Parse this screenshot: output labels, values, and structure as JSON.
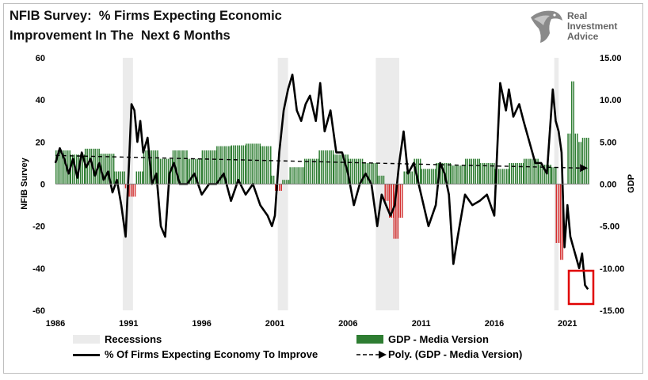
{
  "title_lines": [
    "NFIB Survey:  % Firms Expecting Economic",
    "Improvement In The  Next 6 Months"
  ],
  "logo": {
    "lines": [
      "Real",
      "Investment",
      "Advice"
    ]
  },
  "colors": {
    "gdp_pos": "#2e7d32",
    "gdp_neg": "#d32f2f",
    "recession": "#ebebeb",
    "survey": "#000000",
    "highlight": "#e00000"
  },
  "chart_data": {
    "type": "bar",
    "title": "NFIB Survey:  % Firms Expecting Economic Improvement In The  Next 6 Months",
    "x_ticks": [
      "1986",
      "1991",
      "1996",
      "2001",
      "2006",
      "2011",
      "2016",
      "2021"
    ],
    "x_range": [
      1986,
      2022.5
    ],
    "y_left": {
      "label": "NFIB Survey",
      "range": [
        -60,
        60
      ],
      "ticks": [
        "60",
        "40",
        "20",
        "0",
        "-20",
        "-40",
        "-60"
      ]
    },
    "y_right": {
      "label": "GDP",
      "range": [
        -15,
        15
      ],
      "ticks": [
        "15.00",
        "10.00",
        "5.00",
        "0.00",
        "-5.00",
        "-10.00",
        "-15.00"
      ]
    },
    "grid": false,
    "legend_position": "bottom",
    "recessions": [
      [
        1990.6,
        1991.3
      ],
      [
        2001.2,
        2001.9
      ],
      [
        2007.9,
        2009.5
      ],
      [
        2020.1,
        2020.4
      ]
    ],
    "series": [
      {
        "name": "Recessions",
        "kind": "shaded-band"
      },
      {
        "name": "GDP - Media Version",
        "kind": "bar",
        "axis": "right",
        "x": [
          1986.0,
          1987.0,
          1988.0,
          1989.0,
          1990.0,
          1990.75,
          1991.0,
          1991.5,
          1992.0,
          1993.0,
          1994.0,
          1995.0,
          1996.0,
          1997.0,
          1998.0,
          1999.0,
          2000.0,
          2000.75,
          2001.0,
          2001.5,
          2002.0,
          2003.0,
          2004.0,
          2005.0,
          2006.0,
          2007.0,
          2008.0,
          2008.5,
          2008.8,
          2009.1,
          2009.4,
          2009.8,
          2010.5,
          2011.0,
          2012.0,
          2013.0,
          2014.0,
          2015.0,
          2016.0,
          2017.0,
          2018.0,
          2019.0,
          2019.9,
          2020.2,
          2020.5,
          2020.75,
          2021.0,
          2021.25,
          2021.5,
          2021.75,
          2022.0,
          2022.4
        ],
        "y": [
          4.0,
          3.5,
          4.2,
          3.6,
          1.5,
          -0.5,
          -1.5,
          1.5,
          4.0,
          3.0,
          4.0,
          3.0,
          4.0,
          4.5,
          4.6,
          4.8,
          4.5,
          1.0,
          -0.8,
          0.5,
          2.0,
          3.0,
          4.0,
          3.5,
          3.0,
          2.5,
          1.0,
          -2.0,
          -4.0,
          -6.5,
          -4.0,
          1.5,
          3.0,
          1.8,
          2.5,
          2.2,
          3.0,
          2.5,
          1.8,
          2.5,
          3.0,
          2.3,
          2.0,
          -7.0,
          -9.0,
          0.0,
          6.0,
          12.2,
          6.0,
          5.0,
          5.5,
          5.5
        ]
      },
      {
        "name": "% Of Firms Expecting Economy To Improve",
        "kind": "line",
        "axis": "left",
        "x": [
          1986.0,
          1986.3,
          1986.6,
          1986.9,
          1987.2,
          1987.5,
          1987.8,
          1988.1,
          1988.4,
          1988.7,
          1989.0,
          1989.3,
          1989.6,
          1989.9,
          1990.2,
          1990.5,
          1990.8,
          1991.0,
          1991.2,
          1991.4,
          1991.6,
          1991.8,
          1992.0,
          1992.3,
          1992.6,
          1992.9,
          1993.2,
          1993.5,
          1993.8,
          1994.1,
          1994.5,
          1995.0,
          1995.5,
          1996.0,
          1996.5,
          1997.0,
          1997.5,
          1998.0,
          1998.5,
          1999.0,
          1999.5,
          2000.0,
          2000.5,
          2000.8,
          2001.0,
          2001.3,
          2001.6,
          2001.9,
          2002.2,
          2002.5,
          2002.8,
          2003.1,
          2003.4,
          2003.8,
          2004.1,
          2004.4,
          2004.8,
          2005.2,
          2005.6,
          2006.0,
          2006.4,
          2006.8,
          2007.2,
          2007.6,
          2008.0,
          2008.3,
          2008.6,
          2008.9,
          2009.2,
          2009.5,
          2009.8,
          2010.1,
          2010.5,
          2011.0,
          2011.5,
          2012.0,
          2012.3,
          2012.6,
          2012.9,
          2013.2,
          2013.5,
          2014.0,
          2014.5,
          2015.0,
          2015.5,
          2016.0,
          2016.4,
          2016.8,
          2017.0,
          2017.3,
          2017.7,
          2018.0,
          2018.4,
          2018.8,
          2019.2,
          2019.6,
          2020.0,
          2020.2,
          2020.4,
          2020.6,
          2020.8,
          2021.0,
          2021.2,
          2021.4,
          2021.6,
          2021.8,
          2022.0,
          2022.2,
          2022.4
        ],
        "y": [
          10,
          17,
          12,
          5,
          12,
          3,
          15,
          8,
          12,
          4,
          10,
          2,
          6,
          -4,
          2,
          -10,
          -25,
          5,
          38,
          35,
          20,
          30,
          15,
          22,
          0,
          5,
          -20,
          -25,
          5,
          10,
          0,
          0,
          5,
          -5,
          0,
          0,
          5,
          -8,
          2,
          -5,
          0,
          -10,
          -15,
          -20,
          -15,
          15,
          35,
          45,
          52,
          35,
          30,
          38,
          42,
          30,
          48,
          25,
          35,
          15,
          15,
          5,
          -10,
          0,
          5,
          0,
          -20,
          -5,
          -10,
          -15,
          -10,
          10,
          25,
          5,
          10,
          -5,
          -20,
          -10,
          10,
          5,
          -5,
          -38,
          -25,
          -5,
          -10,
          -8,
          -5,
          -15,
          48,
          35,
          45,
          32,
          38,
          30,
          20,
          10,
          10,
          5,
          45,
          30,
          25,
          15,
          -30,
          -10,
          -25,
          -30,
          -35,
          -40,
          -33,
          -48,
          -50
        ]
      },
      {
        "name": "Poly. (GDP - Media Version)",
        "kind": "trend",
        "axis": "right",
        "x": [
          1986.0,
          2022.4
        ],
        "y": [
          3.4,
          1.9
        ]
      }
    ]
  }
}
